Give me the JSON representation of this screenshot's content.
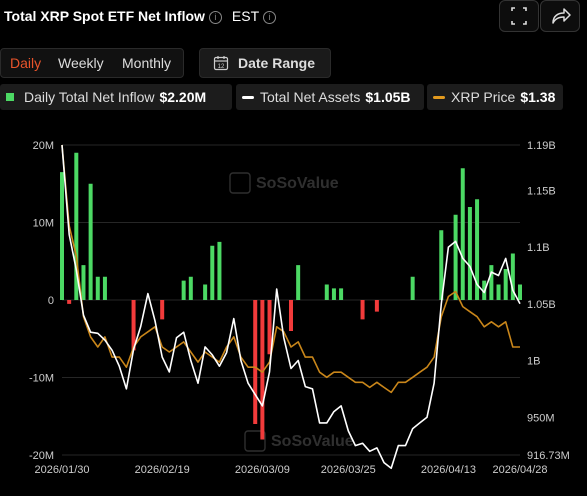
{
  "header": {
    "title": "Total XRP Spot ETF Net Inflow",
    "timezone": "EST"
  },
  "tabs": [
    {
      "label": "Daily",
      "active": true
    },
    {
      "label": "Weekly",
      "active": false
    },
    {
      "label": "Monthly",
      "active": false
    }
  ],
  "date_range": {
    "label": "Date Range"
  },
  "legend": [
    {
      "label": "Daily Total Net Inflow",
      "value": "$2.20M",
      "color": "#4cd964"
    },
    {
      "label": "Total Net Assets",
      "value": "$1.05B",
      "color": "#ffffff"
    },
    {
      "label": "XRP Price",
      "value": "$1.38",
      "color": "#e39a1e"
    }
  ],
  "colors": {
    "positive": "#4cd964",
    "negative": "#f23b3b",
    "assets": "#ffffff",
    "price": "#c9861a"
  },
  "watermark": "SoSoValue",
  "chart_data": {
    "type": "bar",
    "title": "Total XRP Spot ETF Net Inflow",
    "left_axis": {
      "ticks": [
        20000000,
        10000000,
        0,
        -10000000,
        -20000000
      ],
      "labels": [
        "20M",
        "10M",
        "0",
        "-10M",
        "-20M"
      ],
      "range": [
        -20000000,
        20000000
      ]
    },
    "right_axis": {
      "ticks": [
        1190000000,
        1150000000,
        1100000000,
        1050000000,
        1000000000,
        950000000,
        916730000
      ],
      "labels": [
        "1.19B",
        "1.15B",
        "1.1B",
        "1.05B",
        "1B",
        "950M",
        "916.73M"
      ]
    },
    "x_tick_labels": [
      "2026/01/30",
      "2026/02/19",
      "2026/03/09",
      "2026/03/25",
      "2026/04/13",
      "2026/04/28"
    ],
    "x_tick_index": [
      0,
      14,
      28,
      40,
      54,
      64
    ],
    "grid": true,
    "series": [
      {
        "name": "Daily Total Net Inflow",
        "kind": "bar",
        "values": [
          16.5,
          -0.5,
          19.0,
          4.5,
          15.0,
          3.0,
          3.0,
          0,
          0,
          0,
          -6.5,
          0,
          0,
          0,
          -2.5,
          0,
          0,
          2.5,
          3.0,
          0,
          2.0,
          7.0,
          7.5,
          0,
          0,
          0,
          0,
          -16.0,
          -18.0,
          -7.0,
          0,
          0,
          -4.0,
          4.5,
          0,
          0,
          0,
          2.0,
          1.5,
          1.5,
          0,
          0,
          -2.5,
          0,
          -1.5,
          0,
          0,
          0,
          0,
          3.0,
          0,
          0,
          0,
          9.0,
          0,
          11.0,
          17.0,
          12.0,
          13.0,
          2.5,
          4.5,
          2.0,
          4.0,
          6.0,
          2.0
        ],
        "unit": "USD millions"
      },
      {
        "name": "Total Net Assets",
        "kind": "line",
        "values": [
          1190,
          1111,
          1080,
          1040,
          1025,
          1024,
          1018,
          1009,
          995,
          975,
          1010,
          1030,
          1059,
          1035,
          1003,
          990,
          1020,
          1025,
          1000,
          980,
          1012,
          1005,
          995,
          1007,
          1037,
          1000,
          980,
          970,
          960,
          990,
          1063,
          1020,
          993,
          1000,
          977,
          975,
          945,
          945,
          955,
          960,
          938,
          925,
          927,
          920,
          923,
          910,
          905,
          925,
          925,
          940,
          945,
          950,
          980,
          1050,
          1100,
          1105,
          1090,
          1083,
          1067,
          1060,
          1078,
          1075,
          1090,
          1062,
          1050
        ],
        "unit": "USD millions"
      },
      {
        "name": "XRP Price",
        "kind": "line",
        "values": [
          1.18,
          1.1,
          1.07,
          1.01,
          0.99,
          0.98,
          0.99,
          0.97,
          0.97,
          0.96,
          0.98,
          0.99,
          0.995,
          1.0,
          0.98,
          0.975,
          0.98,
          0.985,
          0.975,
          0.965,
          0.975,
          0.97,
          0.965,
          0.98,
          0.99,
          0.97,
          0.96,
          0.96,
          0.955,
          0.965,
          1.0,
          0.995,
          0.98,
          0.985,
          0.97,
          0.97,
          0.955,
          0.95,
          0.955,
          0.955,
          0.95,
          0.945,
          0.945,
          0.94,
          0.945,
          0.94,
          0.935,
          0.945,
          0.945,
          0.95,
          0.955,
          0.96,
          0.97,
          1.01,
          1.03,
          1.035,
          1.02,
          1.015,
          1.01,
          1.0,
          1.005,
          1.0,
          1.005,
          0.98,
          0.98
        ],
        "unit": "USD (relative scale)"
      }
    ]
  }
}
